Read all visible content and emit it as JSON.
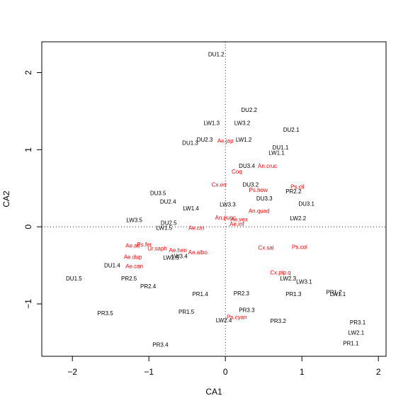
{
  "chart_data": {
    "type": "scatter",
    "title": "",
    "xlabel": "CA1",
    "ylabel": "CA2",
    "xlim": [
      -2.4,
      2.1
    ],
    "ylim": [
      -1.68,
      2.4
    ],
    "x_ticks": [
      -2,
      -1,
      0,
      1,
      2
    ],
    "y_ticks": [
      -1,
      0,
      1,
      2
    ],
    "reference_lines": {
      "x": 0,
      "y": 0,
      "style": "dotted"
    },
    "colors": {
      "sites": "#000000",
      "species": "#ff0000"
    },
    "series": [
      {
        "points": [
          {
            "label": "DU1.2",
            "x": -0.12,
            "y": 2.24
          },
          {
            "label": "DU2.2",
            "x": 0.31,
            "y": 1.52
          },
          {
            "label": "LW1.3",
            "x": -0.18,
            "y": 1.35
          },
          {
            "label": "LW3.2",
            "x": 0.22,
            "y": 1.35
          },
          {
            "label": "DU2.1",
            "x": 0.86,
            "y": 1.26
          },
          {
            "label": "DU2.3",
            "x": -0.27,
            "y": 1.13
          },
          {
            "label": "DU1.3",
            "x": -0.46,
            "y": 1.09
          },
          {
            "label": "LW1.2",
            "x": 0.24,
            "y": 1.13
          },
          {
            "label": "DU1.1",
            "x": 0.72,
            "y": 1.03
          },
          {
            "label": "LW1.1",
            "x": 0.67,
            "y": 0.96
          },
          {
            "label": "DU3.4",
            "x": 0.28,
            "y": 0.79
          },
          {
            "label": "DU3.2",
            "x": 0.33,
            "y": 0.55
          },
          {
            "label": "PR2.2",
            "x": 0.89,
            "y": 0.46
          },
          {
            "label": "DU3.5",
            "x": -0.88,
            "y": 0.44
          },
          {
            "label": "DU3.3",
            "x": 0.51,
            "y": 0.37
          },
          {
            "label": "DU2.4",
            "x": -0.75,
            "y": 0.33
          },
          {
            "label": "DU3.1",
            "x": 1.06,
            "y": 0.3
          },
          {
            "label": "LW3.3",
            "x": 0.03,
            "y": 0.29
          },
          {
            "label": "LW1.4",
            "x": -0.45,
            "y": 0.24
          },
          {
            "label": "LW2.2",
            "x": 0.95,
            "y": 0.11
          },
          {
            "label": "LW3.5",
            "x": -1.19,
            "y": 0.09
          },
          {
            "label": "DU2.5",
            "x": -0.74,
            "y": 0.05
          },
          {
            "label": "LW1.5",
            "x": -0.8,
            "y": -0.01
          },
          {
            "label": "LW3.4",
            "x": -0.6,
            "y": -0.38
          },
          {
            "label": "LW2.5",
            "x": -0.71,
            "y": -0.4
          },
          {
            "label": "DU1.4",
            "x": -1.48,
            "y": -0.5
          },
          {
            "label": "DU1.5",
            "x": -1.98,
            "y": -0.67
          },
          {
            "label": "PR2.5",
            "x": -1.26,
            "y": -0.67
          },
          {
            "label": "LW2.3",
            "x": 0.82,
            "y": -0.67
          },
          {
            "label": "LW3.1",
            "x": 1.03,
            "y": -0.71
          },
          {
            "label": "PR2.4",
            "x": -1.01,
            "y": -0.77
          },
          {
            "label": "PR1.4",
            "x": -0.33,
            "y": -0.87
          },
          {
            "label": "PR2.3",
            "x": 0.21,
            "y": -0.86
          },
          {
            "label": "PR1.3",
            "x": 0.89,
            "y": -0.87
          },
          {
            "label": "PR1.2",
            "x": 1.42,
            "y": -0.85
          },
          {
            "label": "LW1.1",
            "x": 1.47,
            "y": -0.87
          },
          {
            "label": "PR3.5",
            "x": -1.57,
            "y": -1.12
          },
          {
            "label": "PR1.5",
            "x": -0.51,
            "y": -1.1
          },
          {
            "label": "PR3.3",
            "x": 0.28,
            "y": -1.08
          },
          {
            "label": "LW2.4",
            "x": -0.02,
            "y": -1.21
          },
          {
            "label": "PR3.2",
            "x": 0.69,
            "y": -1.22
          },
          {
            "label": "PR3.1",
            "x": 1.73,
            "y": -1.24
          },
          {
            "label": "LW2.1",
            "x": 1.71,
            "y": -1.37
          },
          {
            "label": "PR1.1",
            "x": 1.64,
            "y": -1.51
          },
          {
            "label": "PR3.4",
            "x": -0.85,
            "y": -1.53
          }
        ]
      },
      {
        "points": [
          {
            "label": "Ae.jap",
            "x": 0.0,
            "y": 1.12
          },
          {
            "label": "An.cruc",
            "x": 0.55,
            "y": 0.79
          },
          {
            "label": "Coq",
            "x": 0.15,
            "y": 0.72
          },
          {
            "label": "Cx.err",
            "x": -0.08,
            "y": 0.55
          },
          {
            "label": "Ps.cil",
            "x": 0.94,
            "y": 0.52
          },
          {
            "label": "Ps.how",
            "x": 0.43,
            "y": 0.48
          },
          {
            "label": "An.quad",
            "x": 0.44,
            "y": 0.21
          },
          {
            "label": "An.punc",
            "x": 0.0,
            "y": 0.12
          },
          {
            "label": "Ae.vex",
            "x": 0.18,
            "y": 0.1
          },
          {
            "label": "Ae.inf",
            "x": 0.15,
            "y": 0.04
          },
          {
            "label": "Ae.cin",
            "x": -0.38,
            "y": -0.01
          },
          {
            "label": "Ae.atl",
            "x": -1.21,
            "y": -0.24
          },
          {
            "label": "Ps.fer",
            "x": -1.06,
            "y": -0.23
          },
          {
            "label": "Ur.saph",
            "x": -0.89,
            "y": -0.28
          },
          {
            "label": "Ae.hen",
            "x": -0.62,
            "y": -0.3
          },
          {
            "label": "Ae.albo",
            "x": -0.36,
            "y": -0.33
          },
          {
            "label": "Cx.sal",
            "x": 0.53,
            "y": -0.27
          },
          {
            "label": "Ps.col",
            "x": 0.97,
            "y": -0.26
          },
          {
            "label": "Ae.dup",
            "x": -1.21,
            "y": -0.39
          },
          {
            "label": "Ae.can",
            "x": -1.19,
            "y": -0.51
          },
          {
            "label": "Cx.pip.q",
            "x": 0.72,
            "y": -0.59
          },
          {
            "label": "Ps.cyan",
            "x": 0.15,
            "y": -1.17
          }
        ]
      }
    ]
  }
}
